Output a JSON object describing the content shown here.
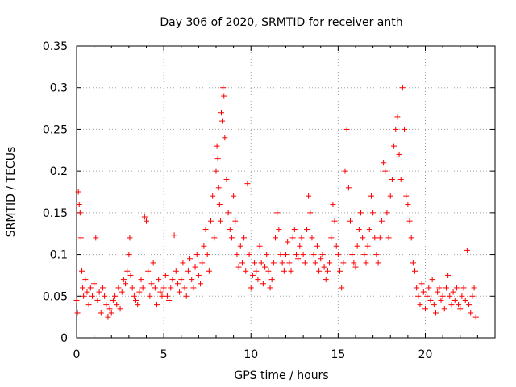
{
  "chart_data": {
    "type": "scatter",
    "title": "Day 306 of 2020, SRMTID for receiver anth",
    "xlabel": "GPS time / hours",
    "ylabel": "SRMTID / TECUs",
    "xlim": [
      0,
      24
    ],
    "ylim": [
      0,
      0.35
    ],
    "x_ticks": [
      0,
      5,
      10,
      15,
      20
    ],
    "x_tick_labels": [
      "0",
      "5",
      "10",
      "15",
      "20"
    ],
    "y_ticks": [
      0,
      0.05,
      0.1,
      0.15,
      0.2,
      0.25,
      0.3,
      0.35
    ],
    "y_tick_labels": [
      "0",
      "0.05",
      "0.1",
      "0.15",
      "0.2",
      "0.25",
      "0.3",
      "0.35"
    ],
    "grid": true,
    "marker": "+",
    "marker_color": "#ff0000",
    "series": [
      {
        "name": "SRMTID",
        "points": [
          [
            0.0,
            0.045
          ],
          [
            0.05,
            0.03
          ],
          [
            0.1,
            0.175
          ],
          [
            0.15,
            0.16
          ],
          [
            0.2,
            0.15
          ],
          [
            0.25,
            0.12
          ],
          [
            0.3,
            0.08
          ],
          [
            0.35,
            0.06
          ],
          [
            0.4,
            0.05
          ],
          [
            0.5,
            0.07
          ],
          [
            0.6,
            0.055
          ],
          [
            0.7,
            0.04
          ],
          [
            0.8,
            0.06
          ],
          [
            0.9,
            0.05
          ],
          [
            1.0,
            0.065
          ],
          [
            1.1,
            0.12
          ],
          [
            1.2,
            0.045
          ],
          [
            1.3,
            0.055
          ],
          [
            1.4,
            0.03
          ],
          [
            1.5,
            0.06
          ],
          [
            1.6,
            0.05
          ],
          [
            1.7,
            0.04
          ],
          [
            1.8,
            0.025
          ],
          [
            1.9,
            0.035
          ],
          [
            2.0,
            0.03
          ],
          [
            2.1,
            0.045
          ],
          [
            2.2,
            0.05
          ],
          [
            2.3,
            0.04
          ],
          [
            2.4,
            0.06
          ],
          [
            2.5,
            0.035
          ],
          [
            2.6,
            0.055
          ],
          [
            2.7,
            0.07
          ],
          [
            2.8,
            0.065
          ],
          [
            2.9,
            0.08
          ],
          [
            3.0,
            0.1
          ],
          [
            3.05,
            0.12
          ],
          [
            3.1,
            0.075
          ],
          [
            3.2,
            0.06
          ],
          [
            3.3,
            0.05
          ],
          [
            3.4,
            0.045
          ],
          [
            3.5,
            0.04
          ],
          [
            3.6,
            0.055
          ],
          [
            3.7,
            0.07
          ],
          [
            3.8,
            0.06
          ],
          [
            3.9,
            0.145
          ],
          [
            4.0,
            0.14
          ],
          [
            4.1,
            0.08
          ],
          [
            4.2,
            0.05
          ],
          [
            4.3,
            0.065
          ],
          [
            4.4,
            0.09
          ],
          [
            4.5,
            0.06
          ],
          [
            4.6,
            0.04
          ],
          [
            4.7,
            0.07
          ],
          [
            4.8,
            0.055
          ],
          [
            4.9,
            0.05
          ],
          [
            5.0,
            0.06
          ],
          [
            5.1,
            0.075
          ],
          [
            5.2,
            0.05
          ],
          [
            5.3,
            0.045
          ],
          [
            5.4,
            0.06
          ],
          [
            5.5,
            0.07
          ],
          [
            5.6,
            0.123
          ],
          [
            5.7,
            0.08
          ],
          [
            5.8,
            0.065
          ],
          [
            5.9,
            0.055
          ],
          [
            6.0,
            0.07
          ],
          [
            6.1,
            0.09
          ],
          [
            6.2,
            0.06
          ],
          [
            6.3,
            0.05
          ],
          [
            6.4,
            0.08
          ],
          [
            6.5,
            0.095
          ],
          [
            6.6,
            0.07
          ],
          [
            6.7,
            0.06
          ],
          [
            6.8,
            0.085
          ],
          [
            6.9,
            0.1
          ],
          [
            7.0,
            0.075
          ],
          [
            7.1,
            0.065
          ],
          [
            7.2,
            0.09
          ],
          [
            7.3,
            0.11
          ],
          [
            7.4,
            0.13
          ],
          [
            7.5,
            0.1
          ],
          [
            7.6,
            0.08
          ],
          [
            7.7,
            0.14
          ],
          [
            7.8,
            0.17
          ],
          [
            7.9,
            0.12
          ],
          [
            8.0,
            0.2
          ],
          [
            8.05,
            0.23
          ],
          [
            8.1,
            0.215
          ],
          [
            8.15,
            0.18
          ],
          [
            8.2,
            0.16
          ],
          [
            8.25,
            0.14
          ],
          [
            8.3,
            0.27
          ],
          [
            8.35,
            0.26
          ],
          [
            8.4,
            0.3
          ],
          [
            8.45,
            0.29
          ],
          [
            8.5,
            0.24
          ],
          [
            8.6,
            0.19
          ],
          [
            8.7,
            0.15
          ],
          [
            8.8,
            0.13
          ],
          [
            8.9,
            0.12
          ],
          [
            9.0,
            0.17
          ],
          [
            9.1,
            0.14
          ],
          [
            9.2,
            0.1
          ],
          [
            9.3,
            0.085
          ],
          [
            9.4,
            0.11
          ],
          [
            9.5,
            0.09
          ],
          [
            9.6,
            0.12
          ],
          [
            9.7,
            0.08
          ],
          [
            9.8,
            0.185
          ],
          [
            9.9,
            0.1
          ],
          [
            10.0,
            0.06
          ],
          [
            10.1,
            0.075
          ],
          [
            10.2,
            0.09
          ],
          [
            10.3,
            0.08
          ],
          [
            10.4,
            0.07
          ],
          [
            10.5,
            0.11
          ],
          [
            10.6,
            0.09
          ],
          [
            10.7,
            0.065
          ],
          [
            10.8,
            0.085
          ],
          [
            10.9,
            0.1
          ],
          [
            11.0,
            0.08
          ],
          [
            11.1,
            0.06
          ],
          [
            11.2,
            0.07
          ],
          [
            11.3,
            0.09
          ],
          [
            11.4,
            0.12
          ],
          [
            11.5,
            0.15
          ],
          [
            11.6,
            0.13
          ],
          [
            11.7,
            0.1
          ],
          [
            11.8,
            0.09
          ],
          [
            11.9,
            0.08
          ],
          [
            12.0,
            0.1
          ],
          [
            12.1,
            0.115
          ],
          [
            12.2,
            0.09
          ],
          [
            12.3,
            0.08
          ],
          [
            12.4,
            0.12
          ],
          [
            12.5,
            0.13
          ],
          [
            12.6,
            0.1
          ],
          [
            12.7,
            0.095
          ],
          [
            12.8,
            0.11
          ],
          [
            12.9,
            0.12
          ],
          [
            13.0,
            0.1
          ],
          [
            13.1,
            0.09
          ],
          [
            13.2,
            0.13
          ],
          [
            13.3,
            0.17
          ],
          [
            13.4,
            0.15
          ],
          [
            13.5,
            0.12
          ],
          [
            13.6,
            0.1
          ],
          [
            13.7,
            0.09
          ],
          [
            13.8,
            0.11
          ],
          [
            13.9,
            0.08
          ],
          [
            14.0,
            0.095
          ],
          [
            14.1,
            0.1
          ],
          [
            14.2,
            0.085
          ],
          [
            14.3,
            0.07
          ],
          [
            14.4,
            0.08
          ],
          [
            14.5,
            0.09
          ],
          [
            14.6,
            0.12
          ],
          [
            14.7,
            0.16
          ],
          [
            14.8,
            0.14
          ],
          [
            14.9,
            0.11
          ],
          [
            15.0,
            0.1
          ],
          [
            15.1,
            0.08
          ],
          [
            15.2,
            0.06
          ],
          [
            15.3,
            0.09
          ],
          [
            15.4,
            0.2
          ],
          [
            15.5,
            0.25
          ],
          [
            15.6,
            0.18
          ],
          [
            15.7,
            0.14
          ],
          [
            15.8,
            0.1
          ],
          [
            15.9,
            0.09
          ],
          [
            16.0,
            0.085
          ],
          [
            16.1,
            0.11
          ],
          [
            16.2,
            0.13
          ],
          [
            16.3,
            0.15
          ],
          [
            16.4,
            0.12
          ],
          [
            16.5,
            0.1
          ],
          [
            16.6,
            0.09
          ],
          [
            16.7,
            0.11
          ],
          [
            16.8,
            0.13
          ],
          [
            16.9,
            0.17
          ],
          [
            17.0,
            0.15
          ],
          [
            17.1,
            0.12
          ],
          [
            17.2,
            0.1
          ],
          [
            17.3,
            0.09
          ],
          [
            17.4,
            0.12
          ],
          [
            17.5,
            0.14
          ],
          [
            17.6,
            0.21
          ],
          [
            17.7,
            0.2
          ],
          [
            17.8,
            0.15
          ],
          [
            17.9,
            0.12
          ],
          [
            18.0,
            0.17
          ],
          [
            18.1,
            0.19
          ],
          [
            18.2,
            0.23
          ],
          [
            18.3,
            0.25
          ],
          [
            18.4,
            0.265
          ],
          [
            18.5,
            0.22
          ],
          [
            18.6,
            0.19
          ],
          [
            18.7,
            0.3
          ],
          [
            18.8,
            0.25
          ],
          [
            18.9,
            0.17
          ],
          [
            19.0,
            0.16
          ],
          [
            19.1,
            0.14
          ],
          [
            19.2,
            0.12
          ],
          [
            19.3,
            0.09
          ],
          [
            19.4,
            0.08
          ],
          [
            19.5,
            0.06
          ],
          [
            19.6,
            0.05
          ],
          [
            19.7,
            0.04
          ],
          [
            19.8,
            0.065
          ],
          [
            19.9,
            0.055
          ],
          [
            20.0,
            0.035
          ],
          [
            20.1,
            0.05
          ],
          [
            20.2,
            0.06
          ],
          [
            20.3,
            0.045
          ],
          [
            20.4,
            0.07
          ],
          [
            20.5,
            0.04
          ],
          [
            20.6,
            0.03
          ],
          [
            20.7,
            0.055
          ],
          [
            20.8,
            0.06
          ],
          [
            20.9,
            0.045
          ],
          [
            21.0,
            0.05
          ],
          [
            21.1,
            0.035
          ],
          [
            21.2,
            0.06
          ],
          [
            21.3,
            0.075
          ],
          [
            21.4,
            0.05
          ],
          [
            21.5,
            0.04
          ],
          [
            21.6,
            0.055
          ],
          [
            21.7,
            0.045
          ],
          [
            21.8,
            0.06
          ],
          [
            21.9,
            0.04
          ],
          [
            22.0,
            0.035
          ],
          [
            22.1,
            0.05
          ],
          [
            22.2,
            0.06
          ],
          [
            22.3,
            0.045
          ],
          [
            22.4,
            0.105
          ],
          [
            22.5,
            0.04
          ],
          [
            22.6,
            0.03
          ],
          [
            22.7,
            0.05
          ],
          [
            22.8,
            0.06
          ],
          [
            22.9,
            0.025
          ]
        ]
      }
    ]
  }
}
